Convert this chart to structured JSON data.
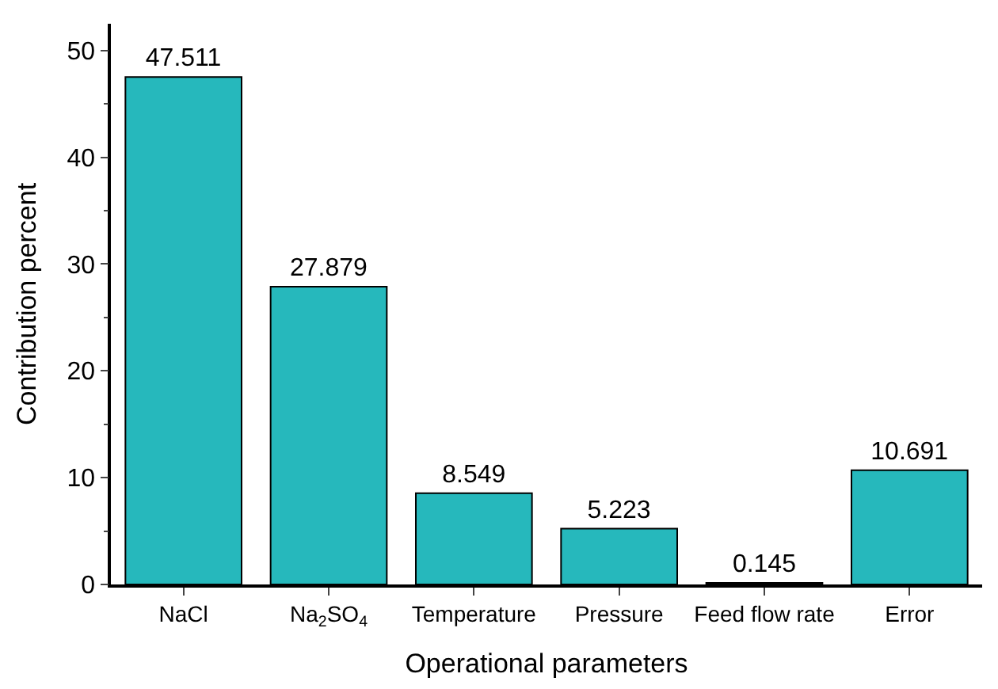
{
  "chart_data": {
    "type": "bar",
    "categories": [
      "NaCl",
      "Na$_{2}$SO$_{4}$",
      "Temperature",
      "Pressure",
      "Feed flow rate",
      "Error"
    ],
    "values": [
      47.511,
      27.879,
      8.549,
      5.223,
      0.145,
      10.691
    ],
    "color": "#26b8bc",
    "xlabel": "Operational parameters",
    "ylabel": "Contribution percent",
    "ylim": [
      0,
      52.5
    ],
    "yticks": [
      0,
      10,
      20,
      30,
      40,
      50
    ],
    "data_labels": true,
    "legend": false
  }
}
